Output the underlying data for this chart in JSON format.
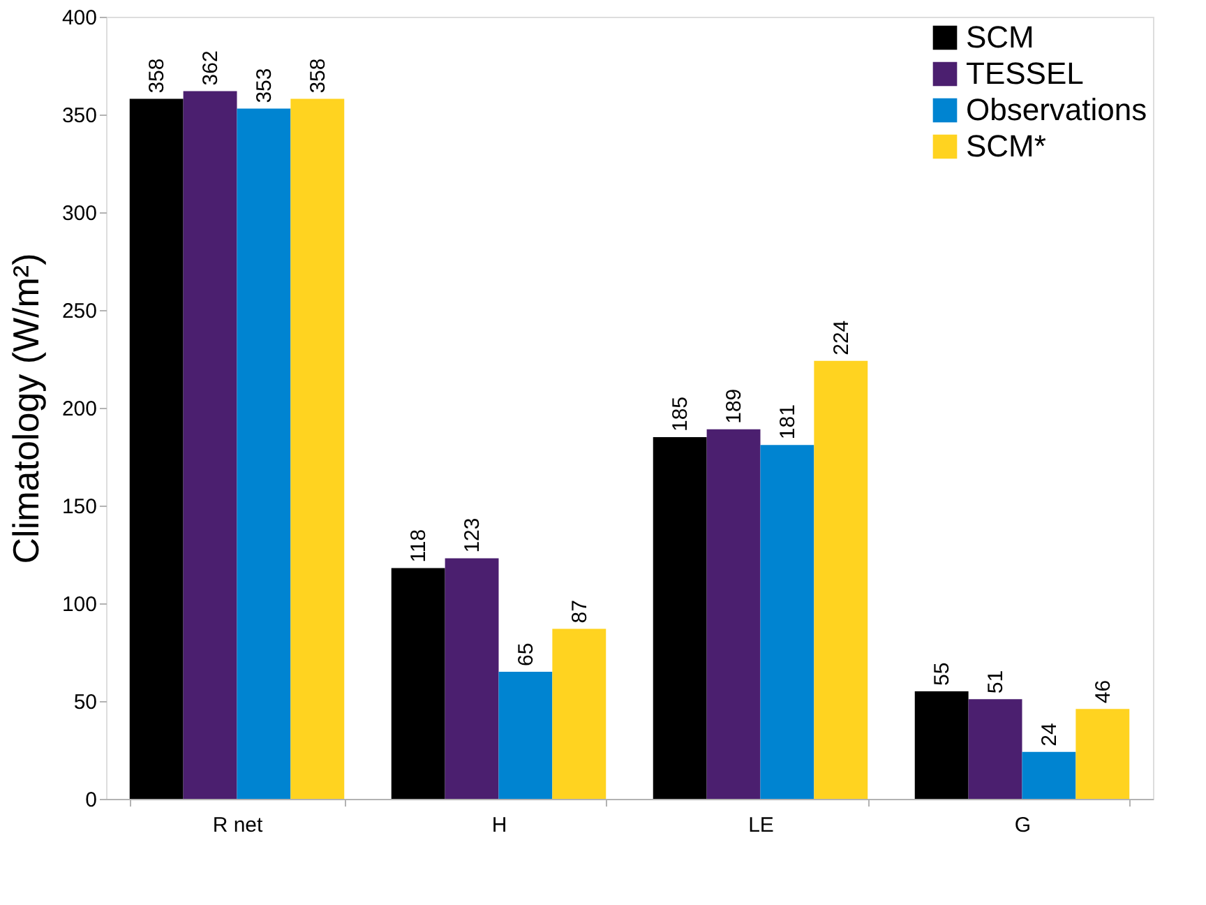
{
  "chart_data": {
    "type": "bar",
    "ylabel": "Climatology (W/m²)",
    "categories": [
      "R net",
      "H",
      "LE",
      "G"
    ],
    "series": [
      {
        "name": "SCM",
        "color": "#000000",
        "values": [
          358,
          118,
          185,
          55
        ]
      },
      {
        "name": "TESSEL",
        "color": "#4b1f6f",
        "values": [
          362,
          123,
          189,
          51
        ]
      },
      {
        "name": "Observations",
        "color": "#0084d1",
        "values": [
          353,
          65,
          181,
          24
        ]
      },
      {
        "name": "SCM*",
        "color": "#ffd320",
        "values": [
          358,
          87,
          224,
          46
        ]
      }
    ],
    "ylim": [
      0,
      400
    ],
    "yticks": [
      0,
      50,
      100,
      150,
      200,
      250,
      300,
      350,
      400
    ],
    "data_labels": true,
    "legend": "top right",
    "grid": false
  }
}
